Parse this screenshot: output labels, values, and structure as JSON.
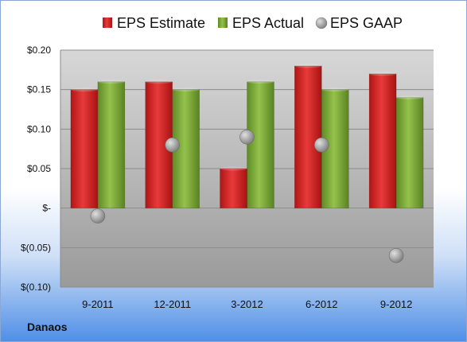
{
  "chart_data": {
    "type": "bar",
    "categories": [
      "9-2011",
      "12-2011",
      "3-2012",
      "6-2012",
      "9-2012"
    ],
    "series": [
      {
        "name": "EPS Estimate",
        "kind": "bar",
        "color": "#d62b2b",
        "values": [
          0.15,
          0.16,
          0.05,
          0.18,
          0.17
        ]
      },
      {
        "name": "EPS Actual",
        "kind": "bar",
        "color": "#7fa83c",
        "values": [
          0.16,
          0.15,
          0.16,
          0.15,
          0.14
        ]
      },
      {
        "name": "EPS GAAP",
        "kind": "scatter",
        "color": "#a9a9a9",
        "values": [
          -0.01,
          0.08,
          0.09,
          0.08,
          -0.06
        ]
      }
    ],
    "ylim": [
      -0.1,
      0.2
    ],
    "yticks": [
      {
        "value": 0.2,
        "label": "$0.20"
      },
      {
        "value": 0.15,
        "label": "$0.15"
      },
      {
        "value": 0.1,
        "label": "$0.10"
      },
      {
        "value": 0.05,
        "label": "$0.05"
      },
      {
        "value": 0.0,
        "label": "$-"
      },
      {
        "value": -0.05,
        "label": "$(0.05)"
      },
      {
        "value": -0.1,
        "label": "$(0.10)"
      }
    ],
    "legend_position": "top",
    "grid": true
  },
  "footer": {
    "company": "Danaos"
  }
}
